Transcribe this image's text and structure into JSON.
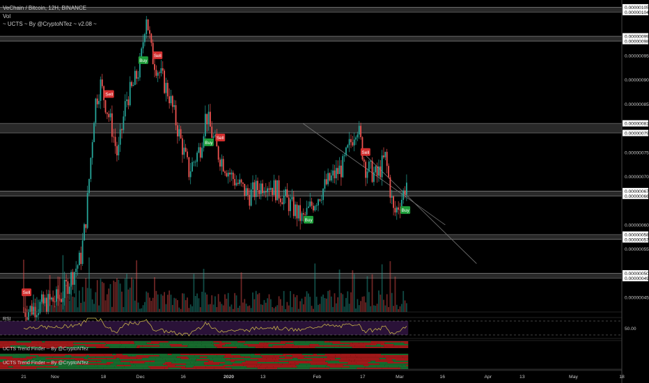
{
  "header": {
    "title": "VeChain / Bitcoin, 12H, BINANCE",
    "volume_label": "Vol",
    "indicator_label": "~ UCTS ~ By @CryptoNTez ~ v2.08 ~"
  },
  "panes": {
    "rsi_label": "RSI",
    "rsi_level": "50.00",
    "trend1_label": "UCTS Trend Finder -- By @CryptoNTez",
    "trend2_label": "UCTS Trend Finder -- By @CryptoNTez"
  },
  "colors": {
    "background": "#000000",
    "up": "#26a69a",
    "down": "#ef5350",
    "band": "#4a4a4a",
    "rsi_line": "#c8b34a",
    "rsi_fill": "#2a1238",
    "buy": "#1e9e3a",
    "sell": "#d32f2f",
    "trend_green": "#1b7a34",
    "trend_red": "#b71c1c"
  },
  "chart_data": {
    "type": "candlestick",
    "symbol": "VeChain / Bitcoin",
    "interval": "12H",
    "exchange": "BINANCE",
    "x_ticks": [
      "21",
      "Nov",
      "18",
      "Dec",
      "16",
      "2020",
      "13",
      "Feb",
      "17",
      "Mar",
      "16",
      "Apr",
      "13",
      "May",
      "18"
    ],
    "y_ticks": [
      "0.00000105",
      "0.00000104",
      "0.00000099",
      "0.00000098",
      "0.00000095",
      "0.00000090",
      "0.00000085",
      "0.00000081",
      "0.00000079",
      "0.00000075",
      "0.00000070",
      "0.00000067",
      "0.00000066",
      "0.00000060",
      "0.00000058",
      "0.00000057",
      "0.00000055",
      "0.00000050",
      "0.00000049",
      "0.00000045"
    ],
    "y_range": [
      4.2e-07,
      1.065e-06
    ],
    "support_resistance": [
      1.05e-06,
      1.04e-06,
      9.9e-07,
      9.8e-07,
      8.1e-07,
      7.9e-07,
      6.7e-07,
      6.6e-07,
      5.8e-07,
      5.7e-07,
      5e-07,
      4.9e-07
    ],
    "trend_channel": {
      "upper": [
        [
          "Jan 27",
          8.1e-07
        ],
        [
          "Mar 17",
          6e-07
        ]
      ],
      "lower": [
        [
          "Feb 17",
          7.5e-07
        ],
        [
          "Mar 28",
          5.2e-07
        ]
      ]
    },
    "price_path": [
      [
        "Oct 21",
        4.2e-07
      ],
      [
        "Nov 3",
        4.5e-07
      ],
      [
        "Nov 10",
        5.3e-07
      ],
      [
        "Nov 12",
        6.2e-07
      ],
      [
        "Nov 15",
        8.5e-07
      ],
      [
        "Nov 17",
        8.9e-07
      ],
      [
        "Nov 21",
        8e-07
      ],
      [
        "Nov 23",
        7.4e-07
      ],
      [
        "Nov 26",
        8.6e-07
      ],
      [
        "Nov 28",
        8.8e-07
      ],
      [
        "Dec 1",
        9.3e-07
      ],
      [
        "Dec 3",
        1.04e-06
      ],
      [
        "Dec 5",
        9.5e-07
      ],
      [
        "Dec 8",
        9.1e-07
      ],
      [
        "Dec 11",
        8.7e-07
      ],
      [
        "Dec 14",
        8e-07
      ],
      [
        "Dec 18",
        7.1e-07
      ],
      [
        "Dec 22",
        7.6e-07
      ],
      [
        "Dec 24",
        8.3e-07
      ],
      [
        "Dec 28",
        7.5e-07
      ],
      [
        "Jan 2",
        7e-07
      ],
      [
        "Jan 8",
        6.6e-07
      ],
      [
        "Jan 14",
        6.9e-07
      ],
      [
        "Jan 20",
        6.6e-07
      ],
      [
        "Jan 27",
        6.1e-07
      ],
      [
        "Jan 30",
        6.4e-07
      ],
      [
        "Feb 5",
        6.9e-07
      ],
      [
        "Feb 10",
        7.2e-07
      ],
      [
        "Feb 15",
        8.1e-07
      ],
      [
        "Feb 18",
        7.2e-07
      ],
      [
        "Feb 22",
        7e-07
      ],
      [
        "Feb 25",
        7.4e-07
      ],
      [
        "Feb 28",
        6.2e-07
      ],
      [
        "Mar 2",
        6.6e-07
      ],
      [
        "Mar 4",
        7e-07
      ]
    ],
    "signals": [
      {
        "label": "Sell",
        "date": "Oct 22",
        "price": 4.6e-07,
        "type": "sell"
      },
      {
        "label": "Sell",
        "date": "Nov 20",
        "price": 8.7e-07,
        "type": "sell"
      },
      {
        "label": "Buy",
        "date": "Dec 2",
        "price": 9.4e-07,
        "type": "buy"
      },
      {
        "label": "Sell",
        "date": "Dec 7",
        "price": 9.5e-07,
        "type": "sell"
      },
      {
        "label": "Buy",
        "date": "Dec 25",
        "price": 7.7e-07,
        "type": "buy"
      },
      {
        "label": "Sell",
        "date": "Dec 29",
        "price": 7.8e-07,
        "type": "sell"
      },
      {
        "label": "Buy",
        "date": "Jan 29",
        "price": 6.1e-07,
        "type": "buy"
      },
      {
        "label": "Sell",
        "date": "Feb 18",
        "price": 7.5e-07,
        "type": "sell"
      },
      {
        "label": "Buy",
        "date": "Mar 3",
        "price": 6.3e-07,
        "type": "buy"
      }
    ]
  }
}
